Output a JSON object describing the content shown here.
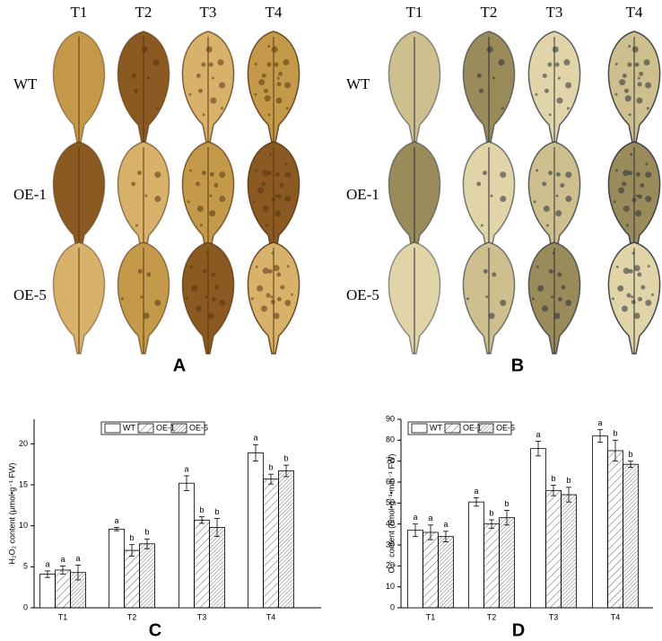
{
  "photo_panels": [
    {
      "panel_label": "A",
      "columns": [
        "T1",
        "T2",
        "T3",
        "T4"
      ],
      "rows": [
        "WT",
        "OE-1",
        "OE-5"
      ]
    },
    {
      "panel_label": "B",
      "columns": [
        "T1",
        "T2",
        "T3",
        "T4"
      ],
      "rows": [
        "WT",
        "OE-1",
        "OE-5"
      ]
    }
  ],
  "chart_data": [
    {
      "type": "bar",
      "panel_label": "C",
      "y_label": "H₂O₂ content (μmol•g⁻¹ FW)",
      "categories": [
        "T1",
        "T2",
        "T3",
        "T4"
      ],
      "series": [
        {
          "name": "WT",
          "pattern": "none",
          "values": [
            4.1,
            9.6,
            15.2,
            18.9
          ],
          "errors": [
            0.4,
            0.2,
            0.9,
            1.0
          ],
          "letters": [
            "a",
            "a",
            "a",
            "a"
          ]
        },
        {
          "name": "OE-1",
          "pattern": "hatch-sparse",
          "values": [
            4.6,
            7.0,
            10.7,
            15.7
          ],
          "errors": [
            0.5,
            0.7,
            0.4,
            0.6
          ],
          "letters": [
            "a",
            "b",
            "b",
            "b"
          ]
        },
        {
          "name": "OE-5",
          "pattern": "hatch-dense",
          "values": [
            4.3,
            7.8,
            9.8,
            16.7
          ],
          "errors": [
            0.9,
            0.6,
            1.1,
            0.7
          ],
          "letters": [
            "a",
            "b",
            "b",
            "b"
          ]
        }
      ],
      "ylim": [
        0,
        23
      ],
      "yticks": [
        0,
        5,
        10,
        15,
        20
      ]
    },
    {
      "type": "bar",
      "panel_label": "D",
      "y_label": "O₂⁻ content (nmol•g⁻¹•min⁻¹ FW)",
      "categories": [
        "T1",
        "T2",
        "T3",
        "T4"
      ],
      "series": [
        {
          "name": "WT",
          "pattern": "none",
          "values": [
            37,
            50.5,
            76,
            82
          ],
          "errors": [
            3,
            2,
            3.5,
            3
          ],
          "letters": [
            "a",
            "a",
            "a",
            "a"
          ]
        },
        {
          "name": "OE-1",
          "pattern": "hatch-sparse",
          "values": [
            36,
            40,
            56,
            75
          ],
          "errors": [
            3.5,
            2,
            2.5,
            5
          ],
          "letters": [
            "a",
            "b",
            "b",
            "b"
          ]
        },
        {
          "name": "OE-5",
          "pattern": "hatch-dense",
          "values": [
            34,
            43,
            54,
            68.5
          ],
          "errors": [
            2.5,
            3.5,
            3.5,
            1.5
          ],
          "letters": [
            "a",
            "b",
            "b",
            "b"
          ]
        }
      ],
      "ylim": [
        0,
        90
      ],
      "yticks": [
        0,
        10,
        20,
        30,
        40,
        50,
        60,
        70,
        80,
        90
      ]
    }
  ]
}
